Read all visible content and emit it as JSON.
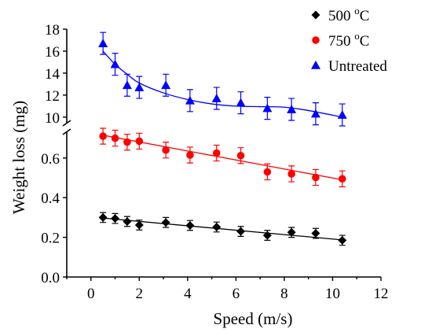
{
  "chart_data": {
    "type": "scatter",
    "xlabel": "Speed (m/s)",
    "ylabel": "Weight loss (mg)",
    "xlim": [
      -1,
      12
    ],
    "x_ticks": [
      "0",
      "2",
      "4",
      "6",
      "8",
      "10",
      "12"
    ],
    "y_axis_broken": true,
    "y_lower": {
      "ylim": [
        0,
        0.75
      ],
      "ticks": [
        "0.0",
        "0.2",
        "0.4",
        "0.6"
      ]
    },
    "y_upper": {
      "ylim": [
        9.2,
        18
      ],
      "ticks": [
        "10",
        "12",
        "14",
        "16",
        "18"
      ]
    },
    "legend_position": "top-right",
    "x": [
      0.5,
      1.0,
      1.5,
      2.0,
      3.1,
      4.1,
      5.2,
      6.2,
      7.3,
      8.3,
      9.3,
      10.4
    ],
    "series": [
      {
        "name": "500 °C",
        "label_main": "500 ",
        "label_sup": "o",
        "label_end": "C",
        "marker": "diamond",
        "color": "#000000",
        "axis": "lower",
        "values": [
          0.3,
          0.295,
          0.28,
          0.262,
          0.275,
          0.26,
          0.252,
          0.23,
          0.21,
          0.225,
          0.22,
          0.185
        ],
        "errors": [
          0.025,
          0.025,
          0.025,
          0.025,
          0.025,
          0.025,
          0.025,
          0.025,
          0.025,
          0.025,
          0.025,
          0.025
        ],
        "fit": "linear",
        "fit_line": [
          0.297,
          0.187
        ]
      },
      {
        "name": "750 °C",
        "label_main": "750 ",
        "label_sup": "o",
        "label_end": "C",
        "marker": "circle",
        "color": "#ff0000",
        "axis": "lower",
        "values": [
          0.71,
          0.7,
          0.68,
          0.685,
          0.64,
          0.615,
          0.625,
          0.612,
          0.53,
          0.52,
          0.502,
          0.495
        ],
        "errors": [
          0.04,
          0.04,
          0.04,
          0.04,
          0.04,
          0.04,
          0.04,
          0.04,
          0.04,
          0.04,
          0.04,
          0.04
        ],
        "fit": "linear",
        "fit_line": [
          0.715,
          0.49
        ]
      },
      {
        "name": "Untreated",
        "label_main": "Untreated",
        "label_sup": "",
        "label_end": "",
        "marker": "triangle",
        "color": "#0000ff",
        "axis": "upper",
        "values": [
          16.7,
          14.8,
          12.9,
          12.7,
          12.9,
          11.5,
          11.7,
          11.3,
          10.8,
          10.7,
          10.3,
          10.2
        ],
        "errors": [
          1.0,
          1.0,
          1.0,
          1.0,
          1.0,
          1.0,
          1.0,
          1.0,
          1.0,
          1.0,
          1.0,
          1.0
        ],
        "fit": "smooth",
        "fit_curve": [
          [
            0.5,
            16.0
          ],
          [
            1.0,
            14.8
          ],
          [
            1.5,
            13.9
          ],
          [
            2.0,
            13.1
          ],
          [
            3.0,
            12.2
          ],
          [
            4.0,
            11.6
          ],
          [
            5.0,
            11.2
          ],
          [
            6.0,
            11.0
          ],
          [
            7.0,
            10.95
          ],
          [
            8.0,
            10.9
          ],
          [
            9.0,
            10.6
          ],
          [
            10.4,
            10.0
          ]
        ]
      }
    ]
  }
}
